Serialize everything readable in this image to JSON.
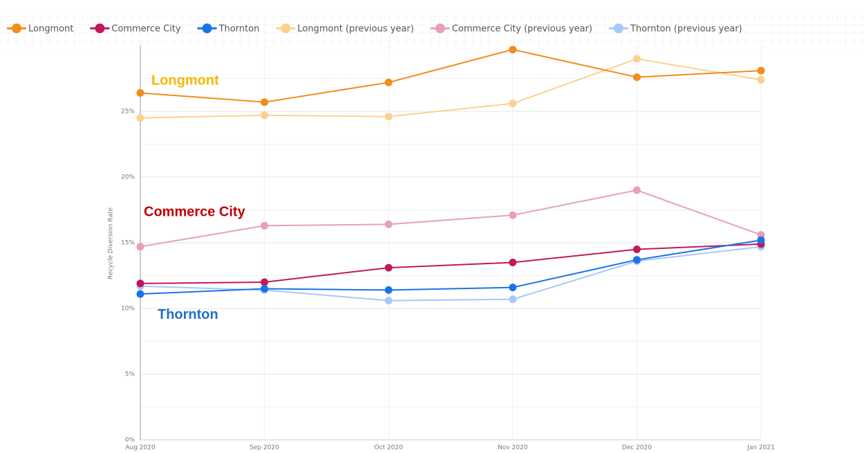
{
  "chart_data": {
    "type": "line",
    "y_axis_label": "Recycle Diversion Rate",
    "categories": [
      "Aug 2020",
      "Sep 2020",
      "Oct 2020",
      "Nov 2020",
      "Dec 2020",
      "Jan 2021"
    ],
    "series": [
      {
        "name": "Longmont",
        "color": "#f28c1b",
        "values": [
          26.4,
          25.7,
          27.2,
          29.7,
          27.6,
          28.1
        ]
      },
      {
        "name": "Commerce City",
        "color": "#c2185b",
        "values": [
          11.9,
          12.0,
          13.1,
          13.5,
          14.5,
          14.9
        ]
      },
      {
        "name": "Thornton",
        "color": "#1a73e8",
        "values": [
          11.1,
          11.5,
          11.4,
          11.6,
          13.7,
          15.2
        ]
      },
      {
        "name": "Longmont (previous year)",
        "color": "#fdd08f",
        "values": [
          24.5,
          24.7,
          24.6,
          25.6,
          29.0,
          27.4
        ]
      },
      {
        "name": "Commerce City (previous year)",
        "color": "#e8a0b8",
        "values": [
          14.7,
          16.3,
          16.4,
          17.1,
          19.0,
          15.6
        ]
      },
      {
        "name": "Thornton (previous year)",
        "color": "#a8c8f8",
        "values": [
          11.7,
          11.4,
          10.6,
          10.7,
          13.6,
          14.7
        ]
      }
    ],
    "ylim": [
      0,
      30
    ],
    "yticks": [
      {
        "value": 0,
        "label": "0%"
      },
      {
        "value": 5,
        "label": "5%"
      },
      {
        "value": 10,
        "label": "10%"
      },
      {
        "value": 15,
        "label": "15%"
      },
      {
        "value": 20,
        "label": "20%"
      },
      {
        "value": 25,
        "label": "25%"
      }
    ],
    "grid": true,
    "legend": "top",
    "annotations": [
      {
        "text": "Longmont",
        "color": "#f5b800",
        "x": 0,
        "y": 27.3
      },
      {
        "text": "Commerce City",
        "color": "#c00000",
        "x": 0,
        "y": 17.3
      },
      {
        "text": "Thornton",
        "color": "#1f6fc5",
        "x": 0,
        "y": 9.5
      }
    ]
  }
}
